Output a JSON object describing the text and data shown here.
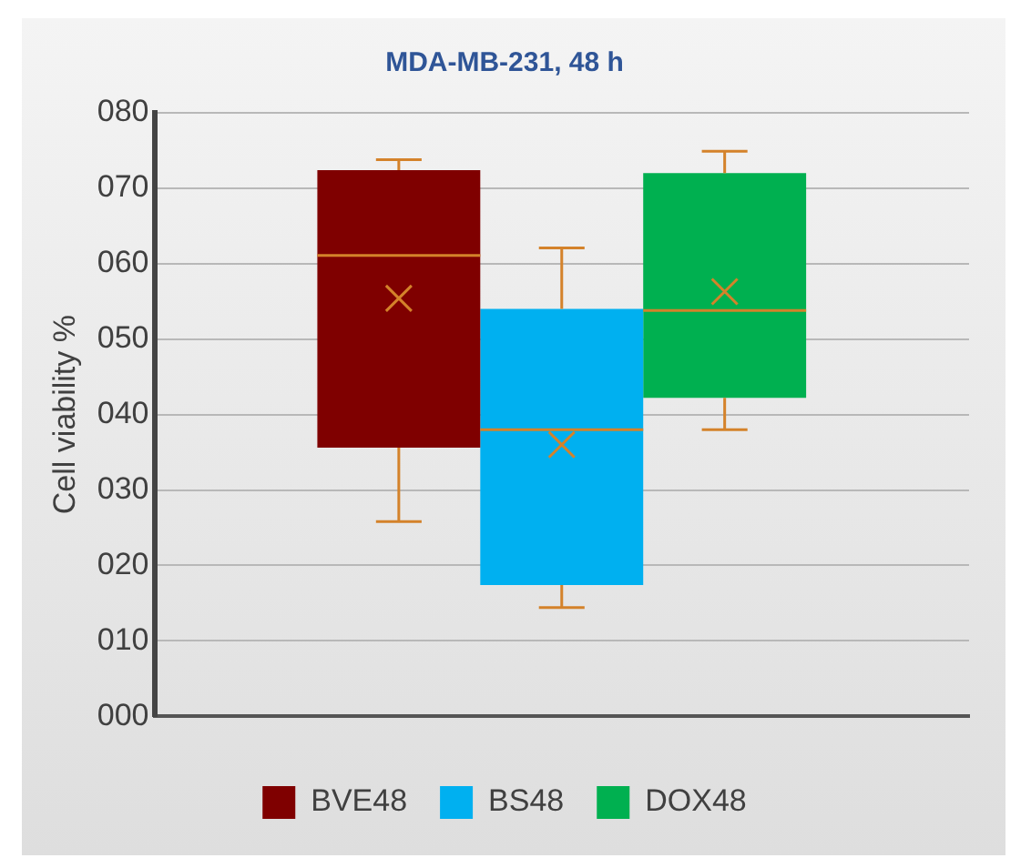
{
  "chart_data": {
    "type": "box",
    "title": "MDA-MB-231, 48 h",
    "ylabel": "Cell viability %",
    "categories": [
      null
    ],
    "series": [
      {
        "name": "BVE48",
        "color": "#7f0000",
        "boxes": [
          {
            "low": 25.8,
            "q1": 35.6,
            "median": 61.1,
            "q3": 72.4,
            "high": 73.8,
            "mean": 55.4
          }
        ]
      },
      {
        "name": "BS48",
        "color": "#00b0f0",
        "boxes": [
          {
            "low": 14.4,
            "q1": 17.4,
            "median": 38,
            "q3": 54,
            "high": 62.1,
            "mean": 36
          }
        ]
      },
      {
        "name": "DOX48",
        "color": "#00b050",
        "boxes": [
          {
            "low": 38,
            "q1": 42.2,
            "median": 53.8,
            "q3": 72,
            "high": 74.9,
            "mean": 56.3
          }
        ]
      }
    ],
    "ylim": [
      0,
      80
    ],
    "yticks": [
      {
        "value": 0,
        "label": "000"
      },
      {
        "value": 10,
        "label": "010"
      },
      {
        "value": 20,
        "label": "020"
      },
      {
        "value": 30,
        "label": "030"
      },
      {
        "value": 40,
        "label": "040"
      },
      {
        "value": 50,
        "label": "050"
      },
      {
        "value": 60,
        "label": "060"
      },
      {
        "value": 70,
        "label": "070"
      },
      {
        "value": 80,
        "label": "080"
      }
    ],
    "grid": "y",
    "legend": "bottom"
  }
}
